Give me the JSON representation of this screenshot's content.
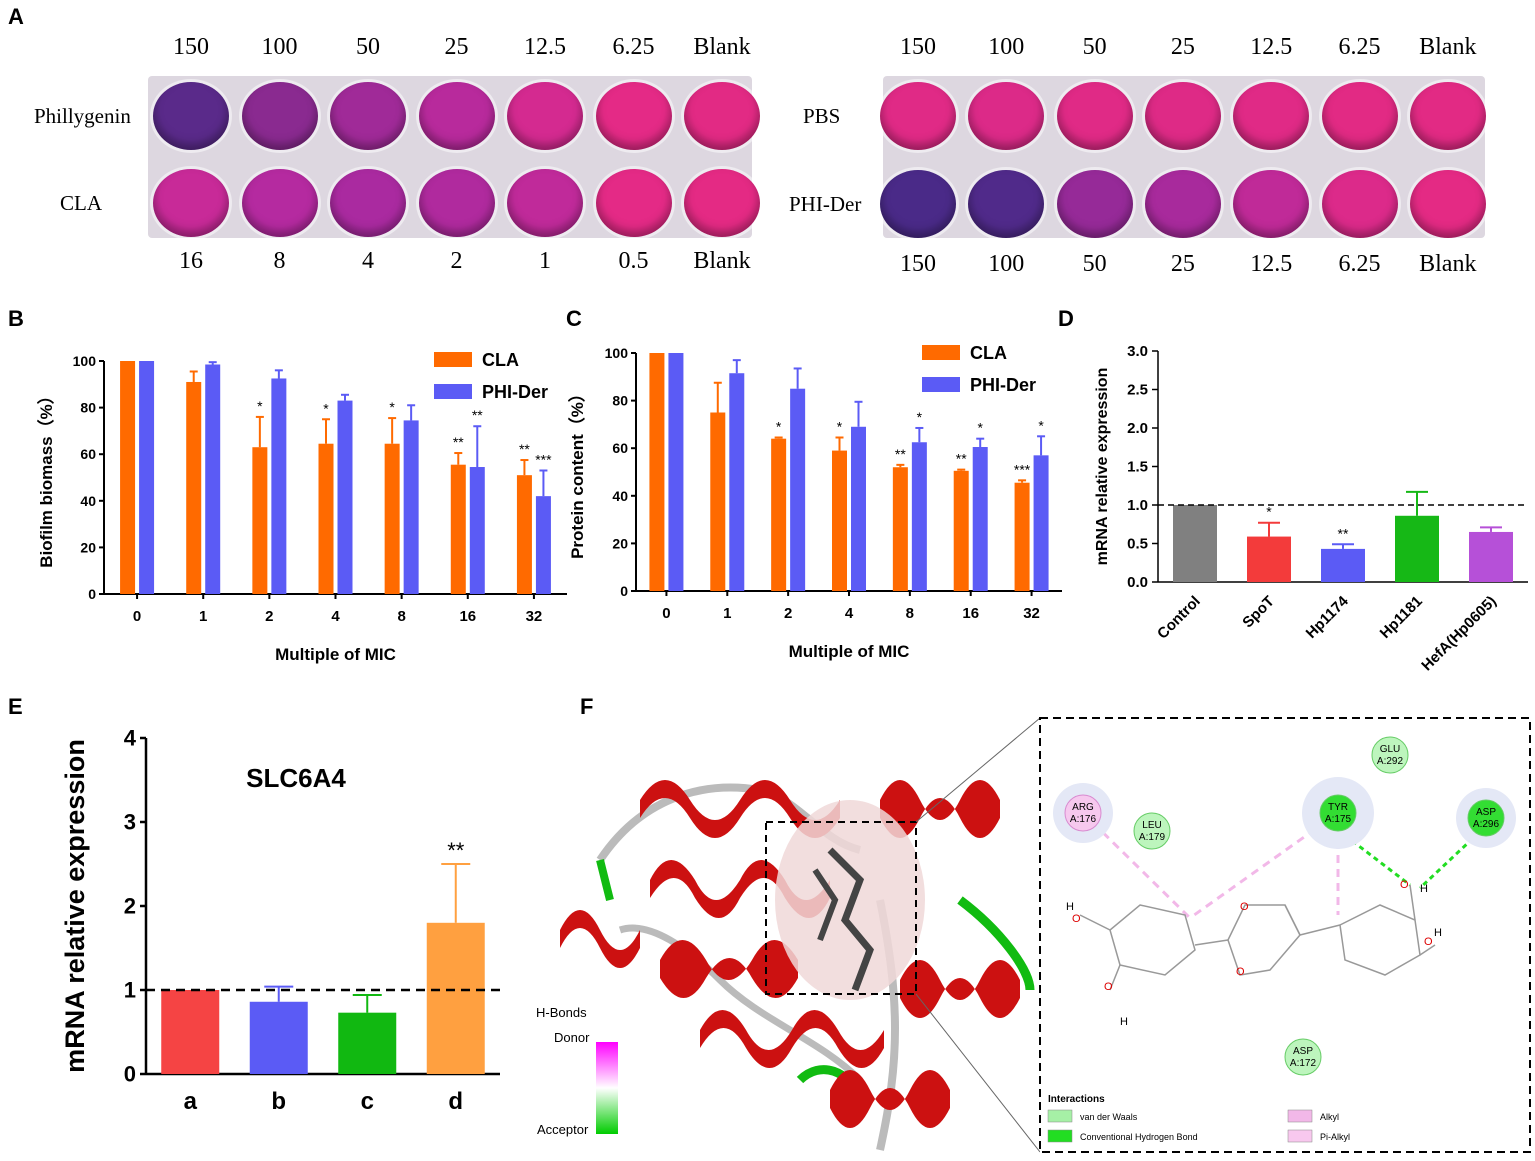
{
  "panels": {
    "A": "A",
    "B": "B",
    "C": "C",
    "D": "D",
    "E": "E",
    "F": "F"
  },
  "plate_left": {
    "top_concentrations": [
      "150",
      "100",
      "50",
      "25",
      "12.5",
      "6.25",
      "Blank"
    ],
    "bottom_concentrations": [
      "16",
      "8",
      "4",
      "2",
      "1",
      "0.5",
      "Blank"
    ],
    "row1_label": "Phillygenin",
    "row2_label": "CLA",
    "row1_colors": [
      "#5a2a8a",
      "#8a2a90",
      "#a02a98",
      "#b82a9c",
      "#d42a90",
      "#e42a86",
      "#e22a84"
    ],
    "row2_colors": [
      "#c82a98",
      "#b52aa0",
      "#aa2aa0",
      "#b02a9e",
      "#c02a9a",
      "#e42a86",
      "#e42a84"
    ]
  },
  "plate_right": {
    "top_concentrations": [
      "150",
      "100",
      "50",
      "25",
      "12.5",
      "6.25",
      "Blank"
    ],
    "bottom_concentrations": [
      "150",
      "100",
      "50",
      "25",
      "12.5",
      "6.25",
      "Blank"
    ],
    "row1_label": "PBS",
    "row2_label": "PHI-Der",
    "row1_colors": [
      "#e02a86",
      "#dc2a88",
      "#e02a86",
      "#de2a86",
      "#e02a86",
      "#e22a84",
      "#e22a84"
    ],
    "row2_colors": [
      "#4a2a88",
      "#502a8a",
      "#962a98",
      "#a82a9c",
      "#c02a98",
      "#dc2a8a",
      "#e42a84"
    ]
  },
  "chart_data": [
    {
      "id": "B",
      "type": "bar",
      "categories": [
        "0",
        "1",
        "2",
        "4",
        "8",
        "16",
        "32"
      ],
      "series": [
        {
          "name": "CLA",
          "color": "#ff6a00",
          "values": [
            100,
            91,
            63,
            64.5,
            64.5,
            55.5,
            51
          ],
          "errors": [
            0,
            4.5,
            13,
            10.5,
            11,
            5,
            6.5
          ],
          "sig": [
            "",
            "",
            "*",
            "*",
            "*",
            "**",
            "**"
          ]
        },
        {
          "name": "PHI-Der",
          "color": "#5b5bf5",
          "values": [
            100,
            98.5,
            92.5,
            83,
            74.5,
            54.5,
            42
          ],
          "errors": [
            0,
            1,
            3.5,
            2.5,
            6.5,
            17.5,
            11
          ],
          "sig": [
            "",
            "",
            "",
            "",
            "",
            "**",
            "***"
          ]
        }
      ],
      "ylabel": "Biofilm biomass（%）",
      "xlabel": "Multiple of MIC",
      "ylim": [
        0,
        100
      ],
      "yticks": [
        "0",
        "20",
        "40",
        "60",
        "80",
        "100"
      ]
    },
    {
      "id": "C",
      "type": "bar",
      "categories": [
        "0",
        "1",
        "2",
        "4",
        "8",
        "16",
        "32"
      ],
      "series": [
        {
          "name": "CLA",
          "color": "#ff6a00",
          "values": [
            100,
            75,
            64,
            59,
            52,
            50.5,
            45.5
          ],
          "errors": [
            0,
            12.5,
            0.5,
            5.5,
            1,
            0.5,
            1
          ],
          "sig": [
            "",
            "",
            "*",
            "*",
            "**",
            "**",
            "***"
          ]
        },
        {
          "name": "PHI-Der",
          "color": "#5b5bf5",
          "values": [
            100,
            91.5,
            85,
            69,
            62.5,
            60.5,
            57
          ],
          "errors": [
            0,
            5.5,
            8.5,
            10.5,
            6,
            3.5,
            8
          ],
          "sig": [
            "",
            "",
            "",
            "",
            "*",
            "*",
            "*"
          ]
        }
      ],
      "ylabel": "Protein content（%）",
      "xlabel": "Multiple of MIC",
      "ylim": [
        0,
        100
      ],
      "yticks": [
        "0",
        "20",
        "40",
        "60",
        "80",
        "100"
      ]
    },
    {
      "id": "D",
      "type": "bar",
      "categories": [
        "Control",
        "SpoT",
        "Hp1174",
        "Hp1181",
        "HefA(Hp0605)"
      ],
      "values": [
        1.0,
        0.59,
        0.43,
        0.86,
        0.65
      ],
      "errors": [
        0,
        0.18,
        0.06,
        0.31,
        0.06
      ],
      "colors": [
        "#808080",
        "#f33b3b",
        "#5b5bf5",
        "#16b816",
        "#b650d8"
      ],
      "sig": [
        "",
        "*",
        "**",
        "",
        ""
      ],
      "ylabel": "mRNA relative expression",
      "ylim": [
        0,
        3.0
      ],
      "yticks": [
        "0.0",
        "0.5",
        "1.0",
        "1.5",
        "2.0",
        "2.5",
        "3.0"
      ],
      "reference_line": 1.0
    },
    {
      "id": "E",
      "type": "bar",
      "title": "SLC6A4",
      "categories": [
        "a",
        "b",
        "c",
        "d"
      ],
      "values": [
        1.0,
        0.86,
        0.73,
        1.8
      ],
      "errors": [
        0,
        0.18,
        0.21,
        0.7
      ],
      "colors": [
        "#f54444",
        "#5b5bf5",
        "#11b811",
        "#ffa040"
      ],
      "sig": [
        "",
        "",
        "",
        "**"
      ],
      "ylabel": "mRNA relative expression",
      "ylim": [
        0,
        4
      ],
      "yticks": [
        "0",
        "1",
        "2",
        "3",
        "4"
      ],
      "reference_line": 1
    }
  ],
  "docking": {
    "legend_title": "H-Bonds",
    "donor_label": "Donor",
    "acceptor_label": "Acceptor",
    "residues": [
      {
        "name": "ARG",
        "id": "A:176",
        "kind": "alkyl"
      },
      {
        "name": "LEU",
        "id": "A:179",
        "kind": "vdw"
      },
      {
        "name": "GLU",
        "id": "A:292",
        "kind": "vdw"
      },
      {
        "name": "TYR",
        "id": "A:175",
        "kind": "hbond"
      },
      {
        "name": "ASP",
        "id": "A:296",
        "kind": "hbond"
      },
      {
        "name": "ASP",
        "id": "A:172",
        "kind": "vdw"
      }
    ],
    "interactions_title": "Interactions",
    "interaction_types": [
      {
        "label": "van der Waals",
        "color": "#a6f0a6"
      },
      {
        "label": "Conventional Hydrogen Bond",
        "color": "#22dd22"
      },
      {
        "label": "Alkyl",
        "color": "#f2b8e8"
      },
      {
        "label": "Pi-Alkyl",
        "color": "#f8c8ee"
      }
    ],
    "atom_labels": [
      "O",
      "O",
      "O",
      "O",
      "O",
      "O",
      "H",
      "H",
      "H",
      "H"
    ]
  }
}
